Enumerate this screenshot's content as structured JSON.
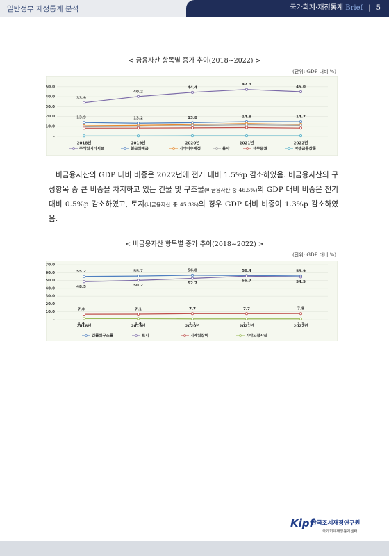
{
  "header": {
    "left": "일반정부 재정통계 분석",
    "right": "국가회계·재정통계",
    "brand": "Brief",
    "page": "5"
  },
  "chart_data": [
    {
      "type": "line",
      "title": "< 금융자산 항목별 증가 추이(2018~2022) >",
      "unit": "(단위: GDP 대비 %)",
      "categories": [
        "2018년",
        "2019년",
        "2020년",
        "2021년",
        "2022년"
      ],
      "ylim": [
        0,
        52
      ],
      "yticks": [
        {
          "value": 0,
          "label": "-"
        },
        {
          "value": 10,
          "label": "10.0"
        },
        {
          "value": 20,
          "label": "20.0"
        },
        {
          "value": 30,
          "label": "30.0"
        },
        {
          "value": 40,
          "label": "40.0"
        },
        {
          "value": 50,
          "label": "50.0"
        }
      ],
      "grid": true,
      "series": [
        {
          "name": "주식및기타지분",
          "color": "#7b6aa8",
          "values": [
            33.9,
            40.2,
            44.4,
            47.3,
            45.0
          ],
          "value_labels": [
            "33.9",
            "40.2",
            "44.4",
            "47.3",
            "45.0"
          ]
        },
        {
          "name": "현금및예금",
          "color": "#4f7fc0",
          "values": [
            13.9,
            13.2,
            13.8,
            14.8,
            14.7
          ],
          "value_labels": [
            "13.9",
            "13.2",
            "13.8",
            "14.8",
            "14.7"
          ]
        },
        {
          "name": "기타미수계정",
          "color": "#e8892c",
          "values": [
            10.5,
            11.0,
            11.8,
            12.8,
            12.0
          ]
        },
        {
          "name": "융자",
          "color": "#a0a0a0",
          "values": [
            9.5,
            10.0,
            10.8,
            11.5,
            11.0
          ]
        },
        {
          "name": "채무증권",
          "color": "#c0504d",
          "values": [
            8.2,
            8.3,
            8.5,
            8.8,
            8.3
          ]
        },
        {
          "name": "파생금융상품",
          "color": "#4bacc6",
          "values": [
            0.5,
            0.5,
            0.6,
            0.6,
            0.6
          ]
        }
      ]
    },
    {
      "type": "line",
      "title": "< 비금융자산 항목별 증가 추이(2018~2022) >",
      "unit": "(단위: GDP 대비 %)",
      "categories": [
        "2018년",
        "2019년",
        "2020년",
        "2021년",
        "2022년"
      ],
      "ylim": [
        0,
        70
      ],
      "yticks": [
        {
          "value": 0,
          "label": "-"
        },
        {
          "value": 10,
          "label": "10.0"
        },
        {
          "value": 20,
          "label": "20.0"
        },
        {
          "value": 30,
          "label": "30.0"
        },
        {
          "value": 40,
          "label": "40.0"
        },
        {
          "value": 50,
          "label": "50.0"
        },
        {
          "value": 60,
          "label": "60.0"
        },
        {
          "value": 70,
          "label": "70.0"
        }
      ],
      "grid": true,
      "series": [
        {
          "name": "건물및구조물",
          "color": "#4f7fc0",
          "values": [
            55.2,
            55.7,
            56.8,
            56.4,
            55.9
          ],
          "value_labels": [
            "55.2",
            "55.7",
            "56.8",
            "56.4",
            "55.9"
          ]
        },
        {
          "name": "토지",
          "color": "#7b6aa8",
          "values": [
            48.5,
            50.2,
            52.7,
            55.7,
            54.5
          ],
          "value_labels": [
            "48.5",
            "50.2",
            "52.7",
            "55.7",
            "54.5"
          ]
        },
        {
          "name": "기계및장비",
          "color": "#c0504d",
          "values": [
            7.0,
            7.1,
            7.7,
            7.7,
            7.8
          ],
          "value_labels": [
            "7.0",
            "7.1",
            "7.7",
            "7.7",
            "7.8"
          ]
        },
        {
          "name": "기타고정자산",
          "color": "#9bbb59",
          "values": [
            1.4,
            1.4,
            1.1,
            1.1,
            1.1
          ],
          "value_labels": [
            "1.4",
            "1.4",
            "1.1",
            "1.1",
            "1.1"
          ]
        }
      ]
    }
  ],
  "paragraph": [
    {
      "text": "비금융자산의 GDP 대비 비중은 2022년에 전기 대비 1.5%p 감소하였음. 비금융자산의 구성항목 중 큰 비중을 차지하고 있는 건물 및 구조물"
    },
    {
      "text": "(비금융자산 중 46.5%)",
      "small": true
    },
    {
      "text": "의 GDP 대비 비중은 전기 대비 0.5%p 감소하였고, 토지"
    },
    {
      "text": "(비금융자산 중 45.3%)",
      "small": true
    },
    {
      "text": "의 경우 GDP 대비 비중이 1.3%p 감소하였음."
    }
  ],
  "footer": {
    "logo": "Kipf",
    "org": "한국조세재정연구원",
    "center": "국가회계재정통계센터"
  }
}
